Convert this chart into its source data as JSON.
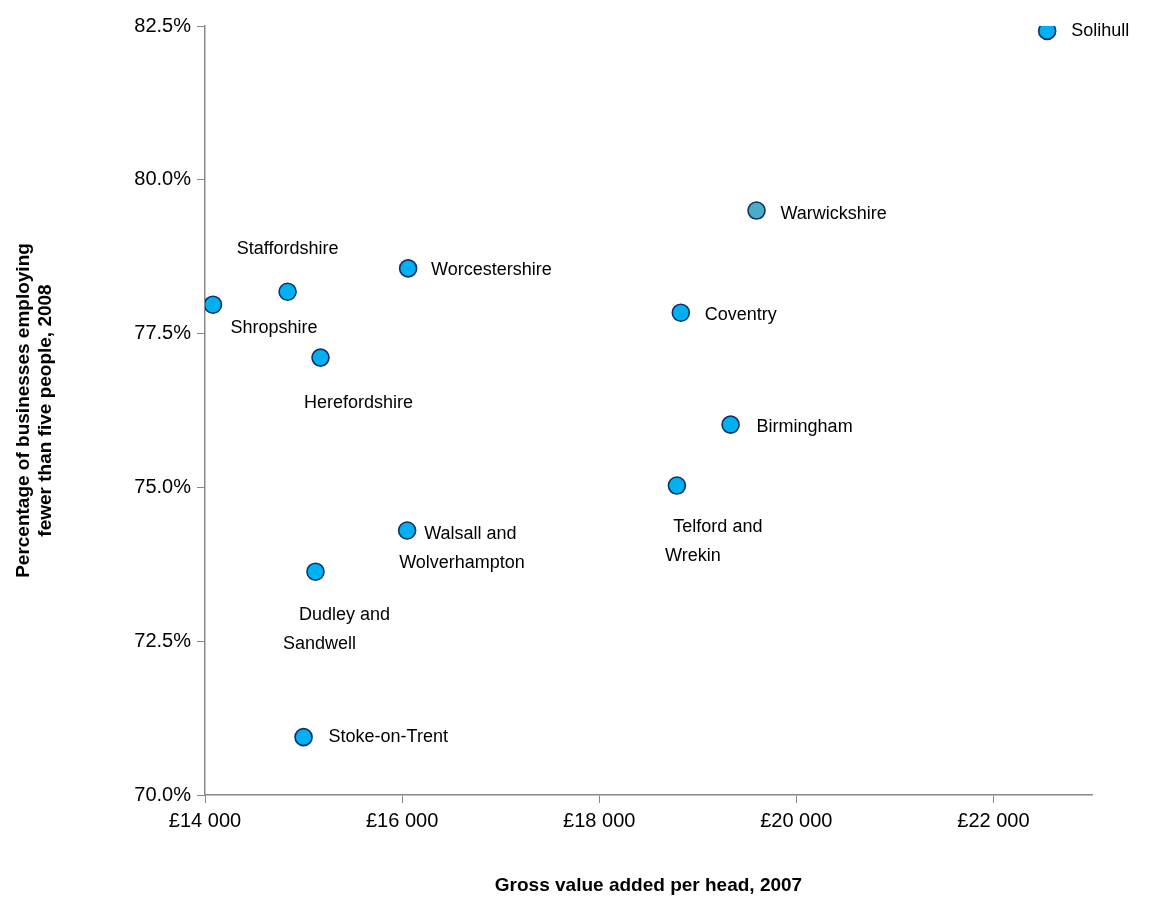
{
  "chart_data": {
    "type": "scatter",
    "xlabel": "Gross value added per head, 2007",
    "ylabel": "Percentage of businesses employing fewer than five people, 2008",
    "x": [
      22545,
      19596,
      18828,
      19333,
      18788,
      16061,
      16051,
      14838,
      14081,
      15172,
      15121,
      15000
    ],
    "values": [
      82.42,
      79.5,
      77.84,
      76.02,
      75.03,
      78.56,
      74.3,
      78.18,
      77.97,
      77.11,
      73.63,
      70.94
    ],
    "colors": [
      "#00b0f0",
      "#4bacc6",
      "#00b0f0",
      "#00b0f0",
      "#00b0f0",
      "#00b0f0",
      "#00b0f0",
      "#00b0f0",
      "#00b0f0",
      "#00b0f0",
      "#00b0f0",
      "#00b0f0"
    ],
    "marker": "circle",
    "grid": false,
    "legend": false,
    "xlim": [
      14000,
      23000
    ],
    "xticks": [
      {
        "value": 14000,
        "label": "£14 000"
      },
      {
        "value": 16000,
        "label": "£16 000"
      },
      {
        "value": 18000,
        "label": "£18 000"
      },
      {
        "value": 20000,
        "label": "£20 000"
      },
      {
        "value": 22000,
        "label": "£22 000"
      }
    ],
    "ylim": [
      70,
      82.5
    ],
    "yticks": [
      {
        "value": 70,
        "label": "70.0%"
      },
      {
        "value": 72.5,
        "label": "72.5%"
      },
      {
        "value": 75,
        "label": "75.0%"
      },
      {
        "value": 77.5,
        "label": "77.5%"
      },
      {
        "value": 80,
        "label": "80.0%"
      },
      {
        "value": 82.5,
        "label": "82.5%"
      }
    ],
    "annotations": [
      {
        "text": "Solihull",
        "x": 22545,
        "y": 82.42
      },
      {
        "text": "Warwickshire",
        "x": 19596,
        "y": 79.5
      },
      {
        "text": "Coventry",
        "x": 18828,
        "y": 77.84
      },
      {
        "text": "Birmingham",
        "x": 19333,
        "y": 76.02
      },
      {
        "text": "Telford and Wrekin",
        "x": 18788,
        "y": 75.03
      },
      {
        "text": "Worcestershire",
        "x": 16061,
        "y": 78.56
      },
      {
        "text": "Walsall and Wolverhampton",
        "x": 16051,
        "y": 74.3
      },
      {
        "text": "Staffordshire",
        "x": 14838,
        "y": 78.18
      },
      {
        "text": "Shropshire",
        "x": 14081,
        "y": 77.97
      },
      {
        "text": "Herefordshire",
        "x": 15172,
        "y": 77.11
      },
      {
        "text": "Dudley and Sandwell",
        "x": 15121,
        "y": 73.63
      },
      {
        "text": "Stoke-on-Trent",
        "x": 15000,
        "y": 70.94
      }
    ]
  }
}
